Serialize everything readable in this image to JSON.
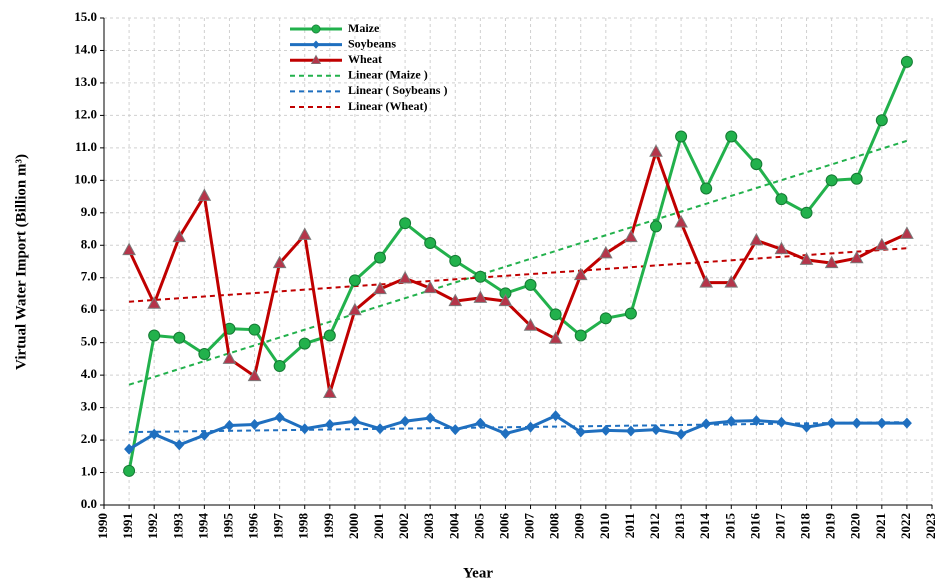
{
  "chart_data": {
    "type": "line",
    "y_label": "Virtual Water Import (Billion m³)",
    "x_label": "Year",
    "x": [
      1991,
      1992,
      1993,
      1994,
      1995,
      1996,
      1997,
      1998,
      1999,
      2000,
      2001,
      2002,
      2003,
      2004,
      2005,
      2006,
      2007,
      2008,
      2009,
      2010,
      2011,
      2012,
      2013,
      2014,
      2015,
      2016,
      2017,
      2018,
      2019,
      2020,
      2021,
      2022
    ],
    "xlim": [
      1990,
      2023
    ],
    "xticks": [
      1990,
      1991,
      1992,
      1993,
      1994,
      1995,
      1996,
      1997,
      1998,
      1999,
      2000,
      2001,
      2002,
      2003,
      2004,
      2005,
      2006,
      2007,
      2008,
      2009,
      2010,
      2011,
      2012,
      2013,
      2014,
      2015,
      2016,
      2017,
      2018,
      2019,
      2020,
      2021,
      2022,
      2023
    ],
    "ylim": [
      0,
      15
    ],
    "yticks": [
      {
        "value": 0,
        "label": "0.0"
      },
      {
        "value": 1,
        "label": "1.0"
      },
      {
        "value": 2,
        "label": "2.0"
      },
      {
        "value": 3,
        "label": "3.0"
      },
      {
        "value": 4,
        "label": "4.0"
      },
      {
        "value": 5,
        "label": "5.0"
      },
      {
        "value": 6,
        "label": "6.0"
      },
      {
        "value": 7,
        "label": "7.0"
      },
      {
        "value": 8,
        "label": "8.0"
      },
      {
        "value": 9,
        "label": "9.0"
      },
      {
        "value": 10,
        "label": "10.0"
      },
      {
        "value": 11,
        "label": "11.0"
      },
      {
        "value": 12,
        "label": "12.0"
      },
      {
        "value": 13,
        "label": "13.0"
      },
      {
        "value": 14,
        "label": "14.0"
      },
      {
        "value": 15,
        "label": "15.0"
      }
    ],
    "grid": true,
    "legend": "top",
    "series": [
      {
        "name": "Maize",
        "color": "#22b14c",
        "marker": "circle",
        "values": [
          1.05,
          5.22,
          5.15,
          4.65,
          5.43,
          5.4,
          4.28,
          4.97,
          5.22,
          6.92,
          7.62,
          8.68,
          8.07,
          7.52,
          7.03,
          6.52,
          6.78,
          5.87,
          5.22,
          5.75,
          5.9,
          8.58,
          11.35,
          9.75,
          11.35,
          10.5,
          9.42,
          9.0,
          10.0,
          10.05,
          11.85,
          13.65
        ],
        "trendline": {
          "name": "Linear (Maize )",
          "color": "#22b14c"
        }
      },
      {
        "name": "Soybeans",
        "color": "#1f6fbf",
        "marker": "diamond",
        "values": [
          1.72,
          2.18,
          1.85,
          2.15,
          2.45,
          2.48,
          2.7,
          2.35,
          2.48,
          2.58,
          2.35,
          2.58,
          2.68,
          2.32,
          2.52,
          2.2,
          2.4,
          2.75,
          2.25,
          2.3,
          2.28,
          2.32,
          2.18,
          2.5,
          2.58,
          2.6,
          2.55,
          2.4,
          2.52,
          2.52,
          2.52,
          2.52
        ],
        "trendline": {
          "name": "Linear ( Soybeans )",
          "color": "#1f6fbf"
        }
      },
      {
        "name": "Wheat",
        "color": "#c00000",
        "marker": "triangle",
        "values": [
          7.85,
          6.2,
          8.25,
          9.52,
          4.5,
          3.97,
          7.45,
          8.32,
          3.45,
          6.0,
          6.65,
          6.98,
          6.68,
          6.28,
          6.38,
          6.28,
          5.52,
          5.12,
          7.08,
          7.75,
          8.25,
          10.88,
          8.7,
          6.85,
          6.85,
          8.15,
          7.88,
          7.55,
          7.45,
          7.6,
          8.0,
          8.35
        ],
        "trendline": {
          "name": "Linear (Wheat)",
          "color": "#c00000"
        }
      }
    ]
  }
}
